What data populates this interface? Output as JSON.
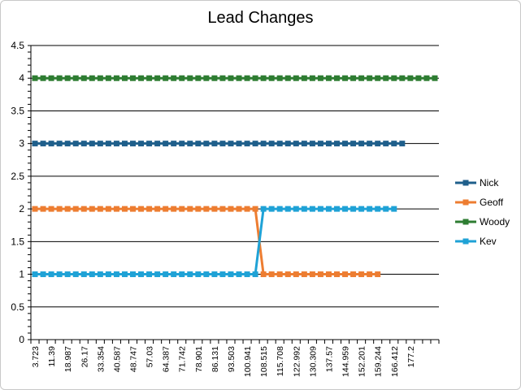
{
  "chart_data": {
    "type": "line",
    "title": "Lead Changes",
    "xlabel": "",
    "ylabel": "",
    "ylim": [
      0,
      4.5
    ],
    "y_ticks": [
      "0",
      "0.5",
      "1",
      "1.5",
      "2",
      "2.5",
      "3",
      "3.5",
      "4",
      "4.5"
    ],
    "x_tick_labels": [
      "3.723",
      "11.39",
      "18.987",
      "26.17",
      "33.354",
      "40.587",
      "48.747",
      "57.03",
      "64.387",
      "71.742",
      "78.901",
      "86.131",
      "93.503",
      "100.941",
      "108.515",
      "115.708",
      "122.992",
      "130.309",
      "137.57",
      "144.959",
      "152.201",
      "159.244",
      "166.412",
      "177.2"
    ],
    "category_count": 50,
    "grid": true,
    "legend_position": "right",
    "series": [
      {
        "name": "Nick",
        "color": "#1f5f8b",
        "segments": [
          {
            "from": 0,
            "to": 45,
            "value": 3
          }
        ]
      },
      {
        "name": "Geoff",
        "color": "#ed7d31",
        "segments": [
          {
            "from": 0,
            "to": 27,
            "value": 2
          },
          {
            "from": 28,
            "to": 42,
            "value": 1
          }
        ]
      },
      {
        "name": "Woody",
        "color": "#2e7d32",
        "segments": [
          {
            "from": 0,
            "to": 49,
            "value": 4
          }
        ]
      },
      {
        "name": "Kev",
        "color": "#1fa2d6",
        "segments": [
          {
            "from": 0,
            "to": 27,
            "value": 1
          },
          {
            "from": 28,
            "to": 44,
            "value": 2
          }
        ]
      }
    ]
  }
}
